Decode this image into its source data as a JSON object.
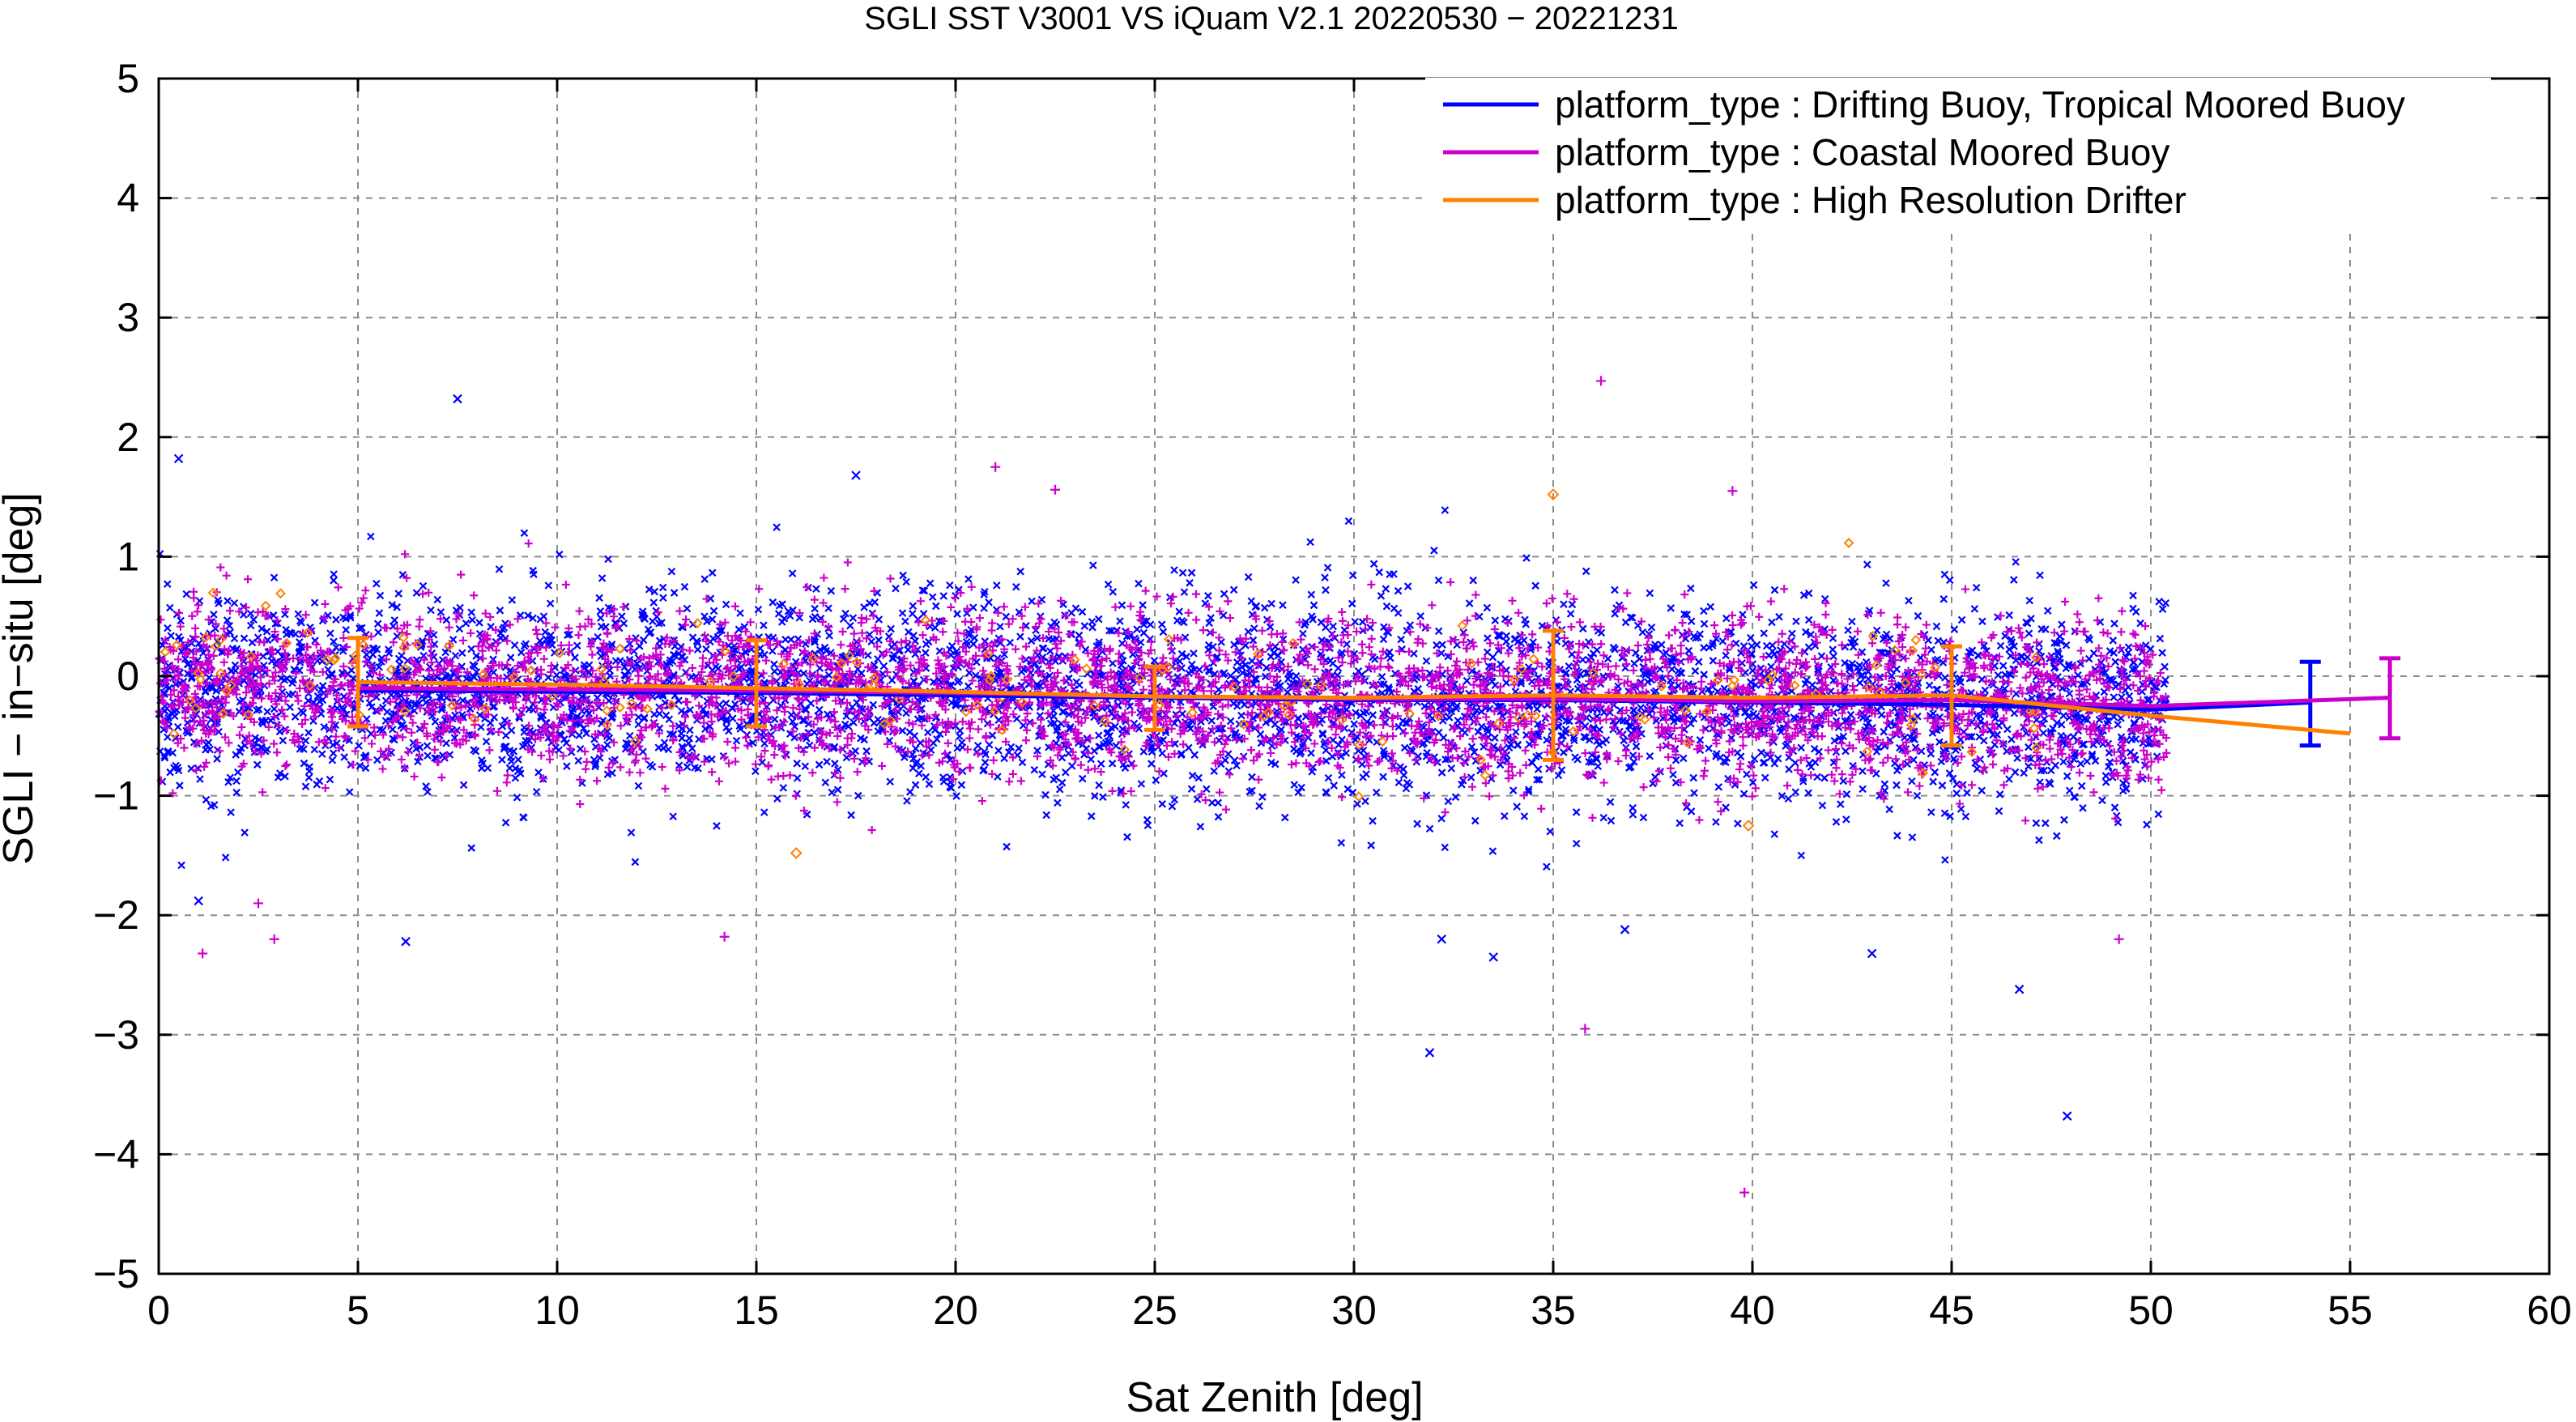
{
  "chart_data": {
    "type": "scatter",
    "title": "SGLI SST V3001 VS iQuam V2.1 20220530 − 20221231",
    "xlabel": "Sat Zenith [deg]",
    "ylabel": "SGLI − in−situ [deg]",
    "xlim": [
      0,
      60
    ],
    "ylim": [
      -5,
      5
    ],
    "x_ticks": [
      0,
      5,
      10,
      15,
      20,
      25,
      30,
      35,
      40,
      45,
      50,
      55,
      60
    ],
    "x_tick_labels": [
      "0",
      "5",
      "10",
      "15",
      "20",
      "25",
      "30",
      "35",
      "40",
      "45",
      "50",
      "55",
      "60"
    ],
    "y_ticks": [
      -5,
      -4,
      -3,
      -2,
      -1,
      0,
      1,
      2,
      3,
      4,
      5
    ],
    "y_tick_labels": [
      "−5",
      "−4",
      "−3",
      "−2",
      "−1",
      "0",
      "1",
      "2",
      "3",
      "4",
      "5"
    ],
    "grid": true,
    "legend_position": "top-right",
    "series": [
      {
        "name": "platform_type : Drifting Buoy, Tropical Moored Buoy",
        "color": "#0000ff",
        "marker": "x",
        "mean_x": [
          5,
          10,
          15,
          20,
          25,
          30,
          35,
          40,
          45,
          50,
          54
        ],
        "mean_y": [
          -0.12,
          -0.13,
          -0.14,
          -0.16,
          -0.18,
          -0.2,
          -0.2,
          -0.22,
          -0.24,
          -0.28,
          -0.22
        ],
        "errorbars": [
          {
            "x": 54,
            "mean": -0.22,
            "low": -0.58,
            "high": 0.12
          }
        ],
        "outliers": [
          {
            "x": 0.5,
            "y": 1.82
          },
          {
            "x": 7.5,
            "y": 2.32
          },
          {
            "x": 17.5,
            "y": 1.68
          },
          {
            "x": 1.0,
            "y": -1.88
          },
          {
            "x": 6.2,
            "y": -2.22
          },
          {
            "x": 32.2,
            "y": -2.2
          },
          {
            "x": 31.9,
            "y": -3.15
          },
          {
            "x": 46.7,
            "y": -2.62
          },
          {
            "x": 47.9,
            "y": -3.68
          },
          {
            "x": 33.5,
            "y": -2.35
          },
          {
            "x": 43.0,
            "y": -2.32
          },
          {
            "x": 36.8,
            "y": -2.12
          }
        ]
      },
      {
        "name": "platform_type : Coastal Moored Buoy",
        "color": "#cc00cc",
        "marker": "+",
        "mean_x": [
          5,
          10,
          15,
          20,
          25,
          30,
          35,
          40,
          45,
          50,
          56
        ],
        "mean_y": [
          -0.1,
          -0.11,
          -0.12,
          -0.14,
          -0.17,
          -0.19,
          -0.19,
          -0.21,
          -0.2,
          -0.25,
          -0.18
        ],
        "errorbars": [
          {
            "x": 56,
            "mean": -0.18,
            "low": -0.52,
            "high": 0.15
          }
        ],
        "outliers": [
          {
            "x": 36.2,
            "y": 2.47
          },
          {
            "x": 22.5,
            "y": 1.56
          },
          {
            "x": 21.0,
            "y": 1.75
          },
          {
            "x": 39.5,
            "y": 1.55
          },
          {
            "x": 1.1,
            "y": -2.32
          },
          {
            "x": 2.9,
            "y": -2.2
          },
          {
            "x": 14.2,
            "y": -2.18
          },
          {
            "x": 35.8,
            "y": -2.95
          },
          {
            "x": 39.8,
            "y": -4.32
          },
          {
            "x": 49.2,
            "y": -2.2
          },
          {
            "x": 2.5,
            "y": -1.9
          }
        ]
      },
      {
        "name": "platform_type : High Resolution Drifter",
        "color": "#ff8000",
        "marker": "diamond",
        "mean_x": [
          5,
          10,
          15,
          20,
          25,
          30,
          35,
          40,
          45,
          50,
          55
        ],
        "mean_y": [
          -0.05,
          -0.07,
          -0.1,
          -0.13,
          -0.17,
          -0.18,
          -0.16,
          -0.18,
          -0.16,
          -0.33,
          -0.48
        ],
        "errorbars": [
          {
            "x": 5,
            "mean": -0.05,
            "low": -0.42,
            "high": 0.32
          },
          {
            "x": 15,
            "mean": -0.1,
            "low": -0.42,
            "high": 0.3
          },
          {
            "x": 25,
            "mean": -0.17,
            "low": -0.45,
            "high": 0.08
          },
          {
            "x": 35,
            "mean": -0.16,
            "low": -0.7,
            "high": 0.38
          },
          {
            "x": 45,
            "mean": -0.16,
            "low": -0.58,
            "high": 0.25
          }
        ],
        "outliers": [
          {
            "x": 35.0,
            "y": 1.52
          },
          {
            "x": 16.0,
            "y": -1.48
          },
          {
            "x": 39.9,
            "y": -1.25
          }
        ]
      }
    ]
  }
}
